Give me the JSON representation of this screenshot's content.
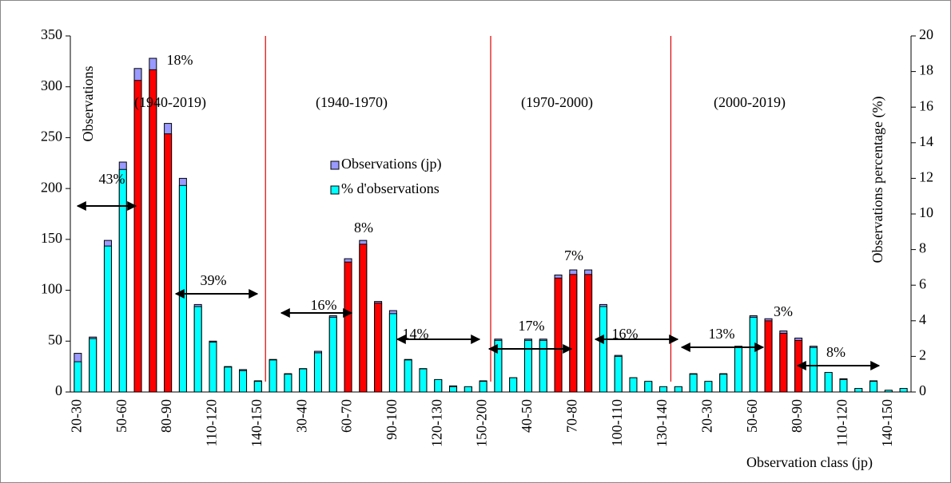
{
  "chart_data": {
    "type": "bar",
    "y_label": "Observations",
    "y2_label": "Observations percentage (%)",
    "x_label": "Observation class (jp)",
    "categories": [
      "20-30",
      null,
      null,
      "50-60",
      null,
      null,
      "80-90",
      null,
      null,
      "110-120",
      null,
      null,
      "140-150",
      null,
      null,
      "30-40",
      null,
      null,
      "60-70",
      null,
      null,
      "90-100",
      null,
      null,
      "120-130",
      null,
      null,
      "150-200",
      null,
      null,
      "40-50",
      null,
      null,
      "70-80",
      null,
      null,
      "100-110",
      null,
      null,
      "130-140",
      null,
      null,
      "20-30",
      null,
      null,
      "50-60",
      null,
      null,
      "80-90",
      null,
      null,
      "110-120",
      null,
      null,
      "140-150",
      null
    ],
    "series": [
      {
        "name": "Observations (jp)",
        "color": "#9999ff",
        "values": [
          38,
          54,
          149,
          226,
          318,
          328,
          264,
          210,
          86,
          50,
          25,
          22,
          11,
          32,
          18,
          23,
          40,
          75,
          131,
          149,
          89,
          80,
          32,
          23,
          12,
          6,
          5,
          11,
          52,
          14,
          52,
          52,
          115,
          120,
          120,
          86,
          36,
          14,
          10,
          5,
          5,
          18,
          10,
          18,
          45,
          75,
          72,
          60,
          53,
          45,
          19,
          13,
          3,
          11,
          1,
          3
        ]
      },
      {
        "name": "% d'observations",
        "color": "#00ffff",
        "axis": "y2",
        "values": [
          1.7,
          3.0,
          8.2,
          12.5,
          17.5,
          18.1,
          14.5,
          11.6,
          4.8,
          2.8,
          1.4,
          1.2,
          0.6,
          1.8,
          1.0,
          1.3,
          2.2,
          4.2,
          7.3,
          8.3,
          5.0,
          4.4,
          1.8,
          1.3,
          0.7,
          0.3,
          0.3,
          0.6,
          2.9,
          0.8,
          2.9,
          2.9,
          6.4,
          6.6,
          6.6,
          4.8,
          2.0,
          0.8,
          0.6,
          0.3,
          0.3,
          1.0,
          0.6,
          1.0,
          2.5,
          4.2,
          4.0,
          3.3,
          2.9,
          2.5,
          1.1,
          0.7,
          0.2,
          0.6,
          0.1,
          0.2
        ],
        "colors": [
          "#00ffff",
          "#00ffff",
          "#00ffff",
          "#00ffff",
          "#ff0000",
          "#ff0000",
          "#ff0000",
          "#00ffff",
          "#00ffff",
          "#00ffff",
          "#00ffff",
          "#00ffff",
          "#00ffff",
          "#00ffff",
          "#00ffff",
          "#00ffff",
          "#00ffff",
          "#00ffff",
          "#ff0000",
          "#ff0000",
          "#ff0000",
          "#00ffff",
          "#00ffff",
          "#00ffff",
          "#00ffff",
          "#00ffff",
          "#00ffff",
          "#00ffff",
          "#00ffff",
          "#00ffff",
          "#00ffff",
          "#00ffff",
          "#ff0000",
          "#ff0000",
          "#ff0000",
          "#00ffff",
          "#00ffff",
          "#00ffff",
          "#00ffff",
          "#00ffff",
          "#00ffff",
          "#00ffff",
          "#00ffff",
          "#00ffff",
          "#00ffff",
          "#00ffff",
          "#ff0000",
          "#ff0000",
          "#ff0000",
          "#00ffff",
          "#00ffff",
          "#00ffff",
          "#00ffff",
          "#00ffff",
          "#00ffff",
          "#00ffff"
        ]
      }
    ],
    "ylim": [
      0,
      350
    ],
    "yticks": [
      0,
      50,
      100,
      150,
      200,
      250,
      300,
      350
    ],
    "y2lim": [
      0,
      20
    ],
    "y2ticks": [
      0,
      2,
      4,
      6,
      8,
      10,
      12,
      14,
      16,
      18,
      20
    ],
    "periods": [
      "(1940-2019)",
      "(1940-1970)",
      "(1970-2000)",
      "(2000-2019)"
    ],
    "peak_labels": [
      "18%",
      "8%",
      "7%",
      "3%"
    ],
    "range_labels": [
      "43%",
      "39%",
      "16%",
      "14%",
      "17%",
      "16%",
      "13%",
      "8%"
    ]
  }
}
